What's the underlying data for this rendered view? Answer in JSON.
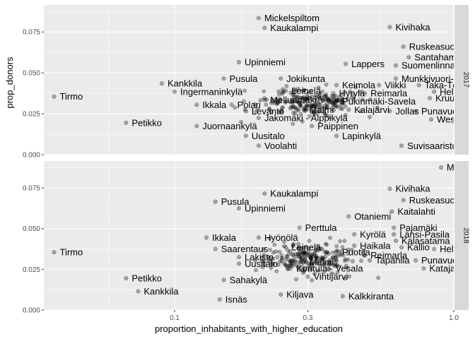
{
  "chart_data": {
    "type": "scatter",
    "xlabel": "proportion_inhabitants_with_higher_education",
    "ylabel": "prop_donors",
    "x_scale": "log10",
    "xlim": [
      0.034,
      1.0
    ],
    "ylim": [
      0.0,
      0.0915
    ],
    "x_ticks": [
      {
        "value": 0.1,
        "label": "0.1"
      },
      {
        "value": 0.3,
        "label": "0.3"
      },
      {
        "value": 1.0,
        "label": "1.0"
      }
    ],
    "y_ticks": [
      {
        "value": 0.0,
        "label": "0.000"
      },
      {
        "value": 0.025,
        "label": "0.025"
      },
      {
        "value": 0.05,
        "label": "0.050"
      },
      {
        "value": 0.075,
        "label": "0.075"
      }
    ],
    "facets": [
      {
        "strip": "2017",
        "labeled_points": [
          {
            "name": "Mickelspiltom",
            "x": 0.2,
            "y": 0.0835
          },
          {
            "name": "Kaukalampi",
            "x": 0.21,
            "y": 0.0775
          },
          {
            "name": "Kivihaka",
            "x": 0.59,
            "y": 0.078
          },
          {
            "name": "Ruskeasuo",
            "x": 0.66,
            "y": 0.066
          },
          {
            "name": "Santahamina",
            "x": 0.69,
            "y": 0.0595
          },
          {
            "name": "Suomenlinna",
            "x": 0.62,
            "y": 0.0545
          },
          {
            "name": "Lappers",
            "x": 0.41,
            "y": 0.0555
          },
          {
            "name": "Upinniemi",
            "x": 0.17,
            "y": 0.0565
          },
          {
            "name": "Munkkivuori-Niemenmäki",
            "x": 0.62,
            "y": 0.0465
          },
          {
            "name": "Pusula",
            "x": 0.15,
            "y": 0.0465
          },
          {
            "name": "Jokikunta",
            "x": 0.24,
            "y": 0.0465
          },
          {
            "name": "Kankkila",
            "x": 0.09,
            "y": 0.0435
          },
          {
            "name": "Keimola",
            "x": 0.38,
            "y": 0.0425
          },
          {
            "name": "Viikki",
            "x": 0.54,
            "y": 0.0425
          },
          {
            "name": "Taka-Töölö",
            "x": 0.75,
            "y": 0.0425
          },
          {
            "name": "Ingermaninkylä",
            "x": 0.1,
            "y": 0.0385
          },
          {
            "name": "Leinelä",
            "x": 0.25,
            "y": 0.039
          },
          {
            "name": "Hyrylä",
            "x": 0.37,
            "y": 0.0375
          },
          {
            "name": "Reimarla",
            "x": 0.48,
            "y": 0.0375
          },
          {
            "name": "Helsinki",
            "x": 0.85,
            "y": 0.0385
          },
          {
            "name": "Tirmo",
            "x": 0.037,
            "y": 0.0355
          },
          {
            "name": "Kruununhaka",
            "x": 0.82,
            "y": 0.0345
          },
          {
            "name": "Mellunmäki",
            "x": 0.21,
            "y": 0.0335
          },
          {
            "name": "Pukinmäki-Savela",
            "x": 0.38,
            "y": 0.0325
          },
          {
            "name": "Ikkala",
            "x": 0.12,
            "y": 0.0305
          },
          {
            "name": "Polari",
            "x": 0.16,
            "y": 0.0305
          },
          {
            "name": "Malmi",
            "x": 0.29,
            "y": 0.0275
          },
          {
            "name": "Kalajärvi",
            "x": 0.42,
            "y": 0.0275
          },
          {
            "name": "Jollas",
            "x": 0.59,
            "y": 0.0265
          },
          {
            "name": "Punavuori",
            "x": 0.73,
            "y": 0.0265
          },
          {
            "name": "Levanto",
            "x": 0.18,
            "y": 0.0265
          },
          {
            "name": "Jakomäki - Alppikylä",
            "x": 0.2,
            "y": 0.0225
          },
          {
            "name": "Westend",
            "x": 0.83,
            "y": 0.0215
          },
          {
            "name": "Petikko",
            "x": 0.067,
            "y": 0.0195
          },
          {
            "name": "Juornaankylä",
            "x": 0.12,
            "y": 0.0175
          },
          {
            "name": "Paippinen",
            "x": 0.31,
            "y": 0.0175
          },
          {
            "name": "Uusitalo",
            "x": 0.18,
            "y": 0.0115
          },
          {
            "name": "Lapinkylä",
            "x": 0.38,
            "y": 0.0115
          },
          {
            "name": "Voolahti",
            "x": 0.2,
            "y": 0.0055
          },
          {
            "name": "Suvisaaristo",
            "x": 0.65,
            "y": 0.0055
          }
        ],
        "unlabeled_count_estimate": 220
      },
      {
        "strip": "2018",
        "labeled_points": [
          {
            "name": "Meilahti",
            "x": 0.9,
            "y": 0.0875
          },
          {
            "name": "Kivihaka",
            "x": 0.59,
            "y": 0.0745
          },
          {
            "name": "Kaukalampi",
            "x": 0.21,
            "y": 0.0715
          },
          {
            "name": "Ruskeasuo",
            "x": 0.66,
            "y": 0.0675
          },
          {
            "name": "Pusula",
            "x": 0.14,
            "y": 0.0665
          },
          {
            "name": "Upinniemi",
            "x": 0.17,
            "y": 0.0625
          },
          {
            "name": "Kaitalahti",
            "x": 0.6,
            "y": 0.0605
          },
          {
            "name": "Otaniemi",
            "x": 0.42,
            "y": 0.0575
          },
          {
            "name": "Perttula",
            "x": 0.28,
            "y": 0.0505
          },
          {
            "name": "Pajamäki",
            "x": 0.61,
            "y": 0.0505
          },
          {
            "name": "Kyrölä",
            "x": 0.44,
            "y": 0.0465
          },
          {
            "name": "Länsi-Pasila",
            "x": 0.61,
            "y": 0.0465
          },
          {
            "name": "Ikkala",
            "x": 0.13,
            "y": 0.0445
          },
          {
            "name": "Hyönölä",
            "x": 0.2,
            "y": 0.0445
          },
          {
            "name": "Kalasatama",
            "x": 0.62,
            "y": 0.0425
          },
          {
            "name": "Haikala",
            "x": 0.44,
            "y": 0.0395
          },
          {
            "name": "Leinelä",
            "x": 0.25,
            "y": 0.0385
          },
          {
            "name": "Kallio",
            "x": 0.65,
            "y": 0.0385
          },
          {
            "name": "Helsinki",
            "x": 0.85,
            "y": 0.0375
          },
          {
            "name": "Saarentaus",
            "x": 0.14,
            "y": 0.0375
          },
          {
            "name": "Tirmo",
            "x": 0.037,
            "y": 0.0355
          },
          {
            "name": "Puotila",
            "x": 0.38,
            "y": 0.0355
          },
          {
            "name": "Reimarla",
            "x": 0.48,
            "y": 0.0335
          },
          {
            "name": "Lakisto",
            "x": 0.17,
            "y": 0.0325
          },
          {
            "name": "Tapanila",
            "x": 0.5,
            "y": 0.0305
          },
          {
            "name": "Punavuori",
            "x": 0.73,
            "y": 0.0305
          },
          {
            "name": "Malmi",
            "x": 0.29,
            "y": 0.0295
          },
          {
            "name": "Uusitalo",
            "x": 0.17,
            "y": 0.0285
          },
          {
            "name": "Kontula - Vesala",
            "x": 0.26,
            "y": 0.0255
          },
          {
            "name": "Katajanokka",
            "x": 0.78,
            "y": 0.0255
          },
          {
            "name": "Vihtijärvi",
            "x": 0.3,
            "y": 0.0205
          },
          {
            "name": "Petikko",
            "x": 0.067,
            "y": 0.0195
          },
          {
            "name": "Sahakylä",
            "x": 0.15,
            "y": 0.0185
          },
          {
            "name": "Kankkila",
            "x": 0.074,
            "y": 0.0115
          },
          {
            "name": "Kiljava",
            "x": 0.24,
            "y": 0.0095
          },
          {
            "name": "Kalkkiranta",
            "x": 0.4,
            "y": 0.0085
          },
          {
            "name": "Isnäs",
            "x": 0.145,
            "y": 0.0065
          }
        ],
        "unlabeled_count_estimate": 220
      }
    ],
    "grid": true,
    "legend": "none"
  }
}
